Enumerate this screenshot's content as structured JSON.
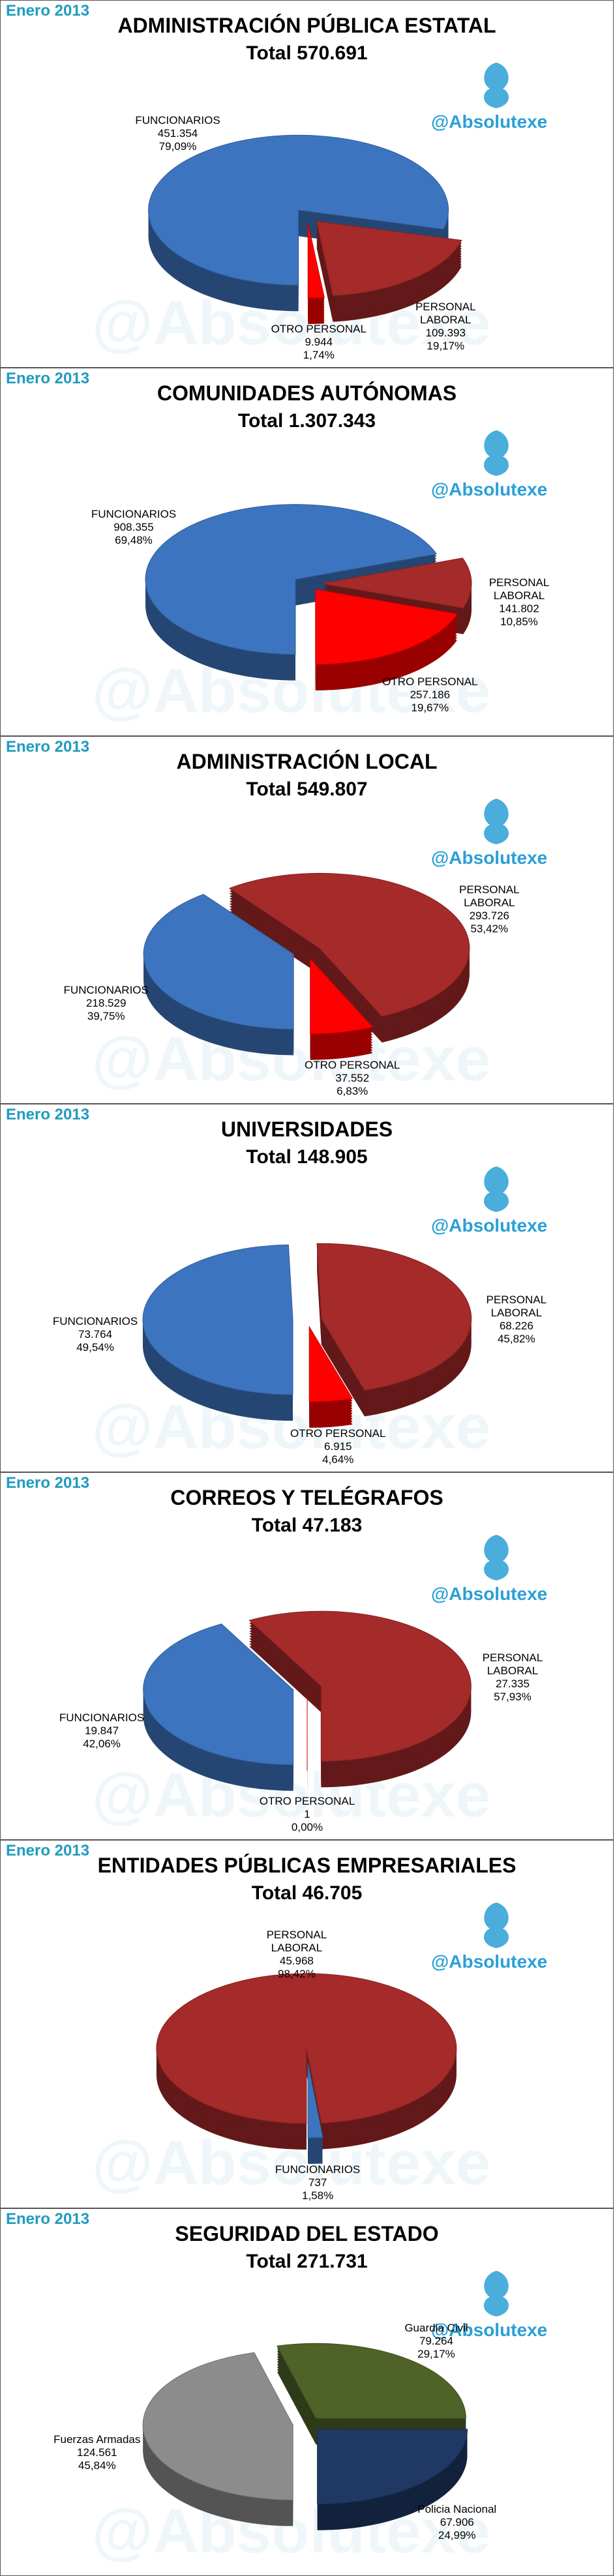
{
  "charts": [
    {
      "type": "pie",
      "header": "Enero 2013",
      "title": "ADMINISTRACIÓN PÚBLICA ESTATAL",
      "subtitle": "Total 570.691",
      "watermark": "@Absolutexe",
      "categories": [
        "FUNCIONARIOS",
        "PERSONAL LABORAL",
        "OTRO PERSONAL"
      ],
      "values": [
        451354,
        109393,
        9944
      ],
      "value_labels": [
        "451.354",
        "109.393",
        "9.944"
      ],
      "percentages": [
        79.09,
        19.17,
        1.74
      ],
      "percentage_labels": [
        "79,09%",
        "19,17%",
        "1,74%"
      ],
      "colors": [
        "#3d74c0",
        "#a52a2a",
        "#ff0000"
      ]
    },
    {
      "type": "pie",
      "header": "Enero 2013",
      "title": "COMUNIDADES AUTÓNOMAS",
      "subtitle": "Total 1.307.343",
      "watermark": "@Absolutexe",
      "categories": [
        "FUNCIONARIOS",
        "PERSONAL LABORAL",
        "OTRO PERSONAL"
      ],
      "values": [
        908355,
        141802,
        257186
      ],
      "value_labels": [
        "908.355",
        "141.802",
        "257.186"
      ],
      "percentages": [
        69.48,
        10.85,
        19.67
      ],
      "percentage_labels": [
        "69,48%",
        "10,85%",
        "19,67%"
      ],
      "colors": [
        "#3d74c0",
        "#a52a2a",
        "#ff0000"
      ]
    },
    {
      "type": "pie",
      "header": "Enero 2013",
      "title": "ADMINISTRACIÓN LOCAL",
      "subtitle": "Total 549.807",
      "watermark": "@Absolutexe",
      "categories": [
        "FUNCIONARIOS",
        "PERSONAL LABORAL",
        "OTRO PERSONAL"
      ],
      "values": [
        218529,
        293726,
        37552
      ],
      "value_labels": [
        "218.529",
        "293.726",
        "37.552"
      ],
      "percentages": [
        39.75,
        53.42,
        6.83
      ],
      "percentage_labels": [
        "39,75%",
        "53,42%",
        "6,83%"
      ],
      "colors": [
        "#3d74c0",
        "#a52a2a",
        "#ff0000"
      ]
    },
    {
      "type": "pie",
      "header": "Enero 2013",
      "title": "UNIVERSIDADES",
      "subtitle": "Total 148.905",
      "watermark": "@Absolutexe",
      "categories": [
        "FUNCIONARIOS",
        "PERSONAL LABORAL",
        "OTRO PERSONAL"
      ],
      "values": [
        73764,
        68226,
        6915
      ],
      "value_labels": [
        "73.764",
        "68.226",
        "6.915"
      ],
      "percentages": [
        49.54,
        45.82,
        4.64
      ],
      "percentage_labels": [
        "49,54%",
        "45,82%",
        "4,64%"
      ],
      "colors": [
        "#3d74c0",
        "#a52a2a",
        "#ff0000"
      ]
    },
    {
      "type": "pie",
      "header": "Enero 2013",
      "title": "CORREOS Y TELÉGRAFOS",
      "subtitle": "Total 47.183",
      "watermark": "@Absolutexe",
      "categories": [
        "FUNCIONARIOS",
        "PERSONAL LABORAL",
        "OTRO PERSONAL"
      ],
      "values": [
        19847,
        27335,
        1
      ],
      "value_labels": [
        "19.847",
        "27.335",
        "1"
      ],
      "percentages": [
        42.06,
        57.93,
        0
      ],
      "percentage_labels": [
        "42,06%",
        "57,93%",
        "0,00%"
      ],
      "colors": [
        "#3d74c0",
        "#a52a2a",
        "#ff0000"
      ]
    },
    {
      "type": "pie",
      "header": "Enero 2013",
      "title": "ENTIDADES PÚBLICAS EMPRESARIALES",
      "subtitle": "Total 46.705",
      "watermark": "@Absolutexe",
      "categories": [
        "PERSONAL LABORAL",
        "FUNCIONARIOS"
      ],
      "values": [
        45968,
        737
      ],
      "value_labels": [
        "45.968",
        "737"
      ],
      "percentages": [
        98.42,
        1.58
      ],
      "percentage_labels": [
        "98,42%",
        "1,58%"
      ],
      "colors": [
        "#a52a2a",
        "#3d74c0"
      ]
    },
    {
      "type": "pie",
      "header": "Enero 2013",
      "title": "SEGURIDAD DEL ESTADO",
      "subtitle": "Total 271.731",
      "watermark": "@Absolutexe",
      "categories": [
        "Fuerzas Armadas",
        "Guardia Civil",
        "Policia Nacional"
      ],
      "values": [
        124561,
        79264,
        67906
      ],
      "value_labels": [
        "124.561",
        "79.264",
        "67.906"
      ],
      "percentages": [
        45.84,
        29.17,
        24.99
      ],
      "percentage_labels": [
        "45,84%",
        "29,17%",
        "24,99%"
      ],
      "colors": [
        "#8c8c8c",
        "#4f6228",
        "#1f3864"
      ]
    }
  ]
}
